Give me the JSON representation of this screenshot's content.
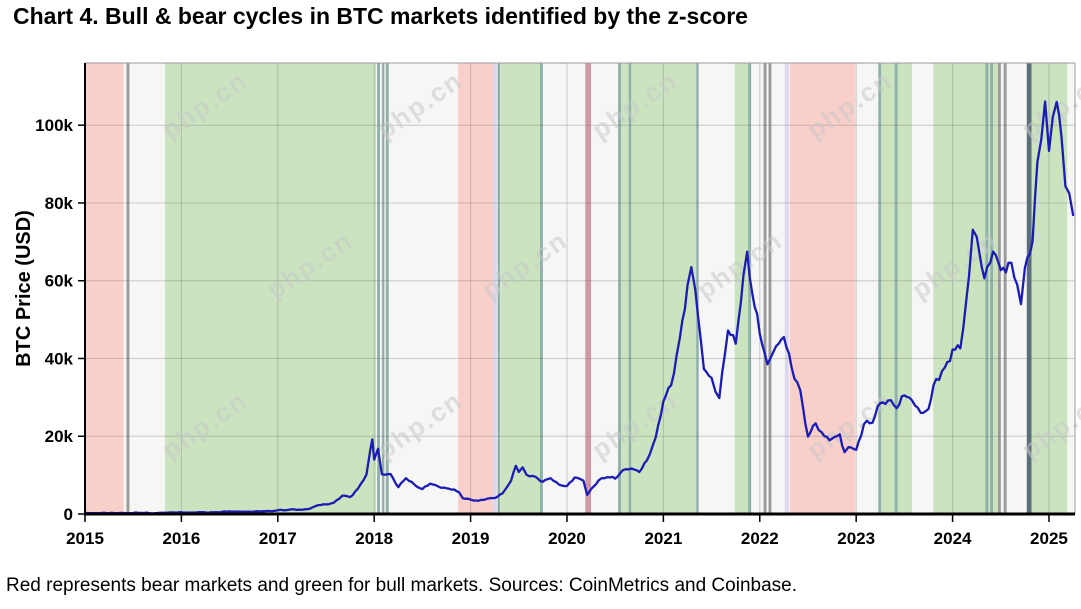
{
  "figure": {
    "title": "Chart 4. Bull & bear cycles in BTC markets identified by the z-score",
    "footnote": "Red represents bear markets and green for bull markets. Sources: CoinMetrics and Coinbase."
  },
  "watermark": {
    "text": "php.cn",
    "color": "#c9c9c9"
  },
  "chart_data": {
    "type": "line",
    "title": "Chart 4. Bull & bear cycles in BTC markets identified by the z-score",
    "xlabel": "",
    "ylabel": "BTC Price (USD)",
    "unit": "thousand USD",
    "grid": true,
    "legend_position": "none",
    "xlim": [
      2015,
      2025.27
    ],
    "ylim": [
      0,
      116
    ],
    "x_ticks": [
      2015,
      2016,
      2017,
      2018,
      2019,
      2020,
      2021,
      2022,
      2023,
      2024,
      2025
    ],
    "y_ticks": [
      {
        "value": 0,
        "label": "0"
      },
      {
        "value": 20,
        "label": "20k"
      },
      {
        "value": 40,
        "label": "40k"
      },
      {
        "value": 60,
        "label": "60k"
      },
      {
        "value": 80,
        "label": "80k"
      },
      {
        "value": 100,
        "label": "100k"
      }
    ],
    "line_color": "#1b1cb4",
    "plot_bg": "#f6f6f4",
    "regime_colors": {
      "bear": "#f8cfc9",
      "bull": "#cbe4bf",
      "teal_line": "#8fb0ab",
      "gray_line": "#9a9a9a",
      "lavender": "#ddd8f0",
      "crash": "#cf9aa6",
      "slate": "#5c6d7e"
    },
    "regimes": [
      {
        "kind": "bear",
        "start": 2015.01,
        "end": 2015.4
      },
      {
        "kind": "gray_line",
        "start": 2015.43,
        "end": 2015.46
      },
      {
        "kind": "bull",
        "start": 2015.83,
        "end": 2018.02
      },
      {
        "kind": "teal_line",
        "start": 2018.03,
        "end": 2018.06
      },
      {
        "kind": "teal_line",
        "start": 2018.08,
        "end": 2018.1
      },
      {
        "kind": "teal_line",
        "start": 2018.12,
        "end": 2018.15
      },
      {
        "kind": "bear",
        "start": 2018.87,
        "end": 2019.23
      },
      {
        "kind": "lavender",
        "start": 2019.23,
        "end": 2019.27
      },
      {
        "kind": "teal_line",
        "start": 2019.28,
        "end": 2019.3
      },
      {
        "kind": "bull",
        "start": 2019.31,
        "end": 2019.74
      },
      {
        "kind": "teal_line",
        "start": 2019.72,
        "end": 2019.75
      },
      {
        "kind": "crash",
        "start": 2020.19,
        "end": 2020.25
      },
      {
        "kind": "teal_line",
        "start": 2020.53,
        "end": 2020.56
      },
      {
        "kind": "bull",
        "start": 2020.56,
        "end": 2021.34
      },
      {
        "kind": "teal_line",
        "start": 2020.64,
        "end": 2020.66
      },
      {
        "kind": "teal_line",
        "start": 2021.34,
        "end": 2021.36
      },
      {
        "kind": "bull",
        "start": 2021.74,
        "end": 2021.89
      },
      {
        "kind": "teal_line",
        "start": 2021.88,
        "end": 2021.91
      },
      {
        "kind": "gray_line",
        "start": 2022.04,
        "end": 2022.07
      },
      {
        "kind": "gray_line",
        "start": 2022.09,
        "end": 2022.12
      },
      {
        "kind": "lavender",
        "start": 2022.26,
        "end": 2022.3
      },
      {
        "kind": "bear",
        "start": 2022.31,
        "end": 2022.99
      },
      {
        "kind": "teal_line",
        "start": 2023.23,
        "end": 2023.26
      },
      {
        "kind": "bull",
        "start": 2023.26,
        "end": 2023.58
      },
      {
        "kind": "teal_line",
        "start": 2023.4,
        "end": 2023.43
      },
      {
        "kind": "bull",
        "start": 2023.8,
        "end": 2024.47
      },
      {
        "kind": "teal_line",
        "start": 2024.34,
        "end": 2024.37
      },
      {
        "kind": "teal_line",
        "start": 2024.39,
        "end": 2024.42
      },
      {
        "kind": "gray_line",
        "start": 2024.47,
        "end": 2024.5
      },
      {
        "kind": "gray_line",
        "start": 2024.53,
        "end": 2024.56
      },
      {
        "kind": "slate",
        "start": 2024.77,
        "end": 2024.82
      },
      {
        "kind": "bull",
        "start": 2024.82,
        "end": 2025.19
      }
    ],
    "series": {
      "name": "BTC price (thousand USD)",
      "points": [
        [
          2015.0,
          0.31
        ],
        [
          2015.08,
          0.22
        ],
        [
          2015.17,
          0.25
        ],
        [
          2015.25,
          0.24
        ],
        [
          2015.33,
          0.24
        ],
        [
          2015.42,
          0.23
        ],
        [
          2015.5,
          0.26
        ],
        [
          2015.58,
          0.28
        ],
        [
          2015.67,
          0.23
        ],
        [
          2015.75,
          0.24
        ],
        [
          2015.83,
          0.31
        ],
        [
          2015.92,
          0.38
        ],
        [
          2016.0,
          0.43
        ],
        [
          2016.08,
          0.37
        ],
        [
          2016.17,
          0.44
        ],
        [
          2016.25,
          0.42
        ],
        [
          2016.33,
          0.45
        ],
        [
          2016.42,
          0.53
        ],
        [
          2016.5,
          0.67
        ],
        [
          2016.58,
          0.62
        ],
        [
          2016.67,
          0.58
        ],
        [
          2016.75,
          0.61
        ],
        [
          2016.83,
          0.7
        ],
        [
          2016.92,
          0.74
        ],
        [
          2017.0,
          0.96
        ],
        [
          2017.08,
          0.97
        ],
        [
          2017.17,
          1.18
        ],
        [
          2017.25,
          1.08
        ],
        [
          2017.33,
          1.35
        ],
        [
          2017.42,
          2.29
        ],
        [
          2017.5,
          2.48
        ],
        [
          2017.58,
          2.87
        ],
        [
          2017.67,
          4.73
        ],
        [
          2017.75,
          4.34
        ],
        [
          2017.83,
          6.47
        ],
        [
          2017.92,
          10.2
        ],
        [
          2017.96,
          16.5
        ],
        [
          2017.98,
          19.2
        ],
        [
          2018.0,
          14.0
        ],
        [
          2018.04,
          16.8
        ],
        [
          2018.08,
          10.2
        ],
        [
          2018.17,
          10.3
        ],
        [
          2018.25,
          6.9
        ],
        [
          2018.33,
          9.2
        ],
        [
          2018.42,
          7.5
        ],
        [
          2018.5,
          6.4
        ],
        [
          2018.58,
          7.8
        ],
        [
          2018.67,
          7.0
        ],
        [
          2018.75,
          6.6
        ],
        [
          2018.83,
          6.3
        ],
        [
          2018.88,
          5.6
        ],
        [
          2018.92,
          4.0
        ],
        [
          2019.0,
          3.7
        ],
        [
          2019.08,
          3.4
        ],
        [
          2019.17,
          3.9
        ],
        [
          2019.25,
          4.1
        ],
        [
          2019.33,
          5.3
        ],
        [
          2019.42,
          8.6
        ],
        [
          2019.47,
          12.4
        ],
        [
          2019.5,
          10.8
        ],
        [
          2019.54,
          12.0
        ],
        [
          2019.58,
          10.1
        ],
        [
          2019.67,
          9.6
        ],
        [
          2019.75,
          8.3
        ],
        [
          2019.83,
          9.2
        ],
        [
          2019.92,
          7.5
        ],
        [
          2020.0,
          7.2
        ],
        [
          2020.08,
          9.4
        ],
        [
          2020.17,
          8.6
        ],
        [
          2020.21,
          4.9
        ],
        [
          2020.25,
          6.4
        ],
        [
          2020.33,
          8.7
        ],
        [
          2020.42,
          9.5
        ],
        [
          2020.5,
          9.1
        ],
        [
          2020.58,
          11.3
        ],
        [
          2020.67,
          11.7
        ],
        [
          2020.75,
          10.8
        ],
        [
          2020.83,
          13.8
        ],
        [
          2020.92,
          19.7
        ],
        [
          2021.0,
          29.0
        ],
        [
          2021.08,
          33.1
        ],
        [
          2021.17,
          45.2
        ],
        [
          2021.25,
          58.8
        ],
        [
          2021.29,
          63.5
        ],
        [
          2021.33,
          57.8
        ],
        [
          2021.42,
          37.3
        ],
        [
          2021.5,
          35.0
        ],
        [
          2021.54,
          31.5
        ],
        [
          2021.58,
          29.8
        ],
        [
          2021.67,
          47.2
        ],
        [
          2021.75,
          43.8
        ],
        [
          2021.83,
          61.3
        ],
        [
          2021.87,
          67.5
        ],
        [
          2021.92,
          57.0
        ],
        [
          2022.0,
          46.3
        ],
        [
          2022.08,
          38.5
        ],
        [
          2022.17,
          43.2
        ],
        [
          2022.25,
          45.5
        ],
        [
          2022.33,
          37.7
        ],
        [
          2022.42,
          31.8
        ],
        [
          2022.5,
          19.9
        ],
        [
          2022.58,
          23.3
        ],
        [
          2022.67,
          20.0
        ],
        [
          2022.75,
          19.4
        ],
        [
          2022.83,
          20.5
        ],
        [
          2022.88,
          15.9
        ],
        [
          2022.92,
          17.2
        ],
        [
          2023.0,
          16.5
        ],
        [
          2023.08,
          23.1
        ],
        [
          2023.17,
          23.5
        ],
        [
          2023.25,
          28.5
        ],
        [
          2023.33,
          29.2
        ],
        [
          2023.42,
          27.2
        ],
        [
          2023.5,
          30.5
        ],
        [
          2023.58,
          29.2
        ],
        [
          2023.67,
          26.0
        ],
        [
          2023.75,
          27.0
        ],
        [
          2023.83,
          34.7
        ],
        [
          2023.92,
          37.7
        ],
        [
          2024.0,
          42.3
        ],
        [
          2024.08,
          42.6
        ],
        [
          2024.17,
          61.2
        ],
        [
          2024.21,
          73.1
        ],
        [
          2024.25,
          71.3
        ],
        [
          2024.33,
          60.6
        ],
        [
          2024.42,
          67.5
        ],
        [
          2024.5,
          62.7
        ],
        [
          2024.58,
          64.6
        ],
        [
          2024.67,
          59.0
        ],
        [
          2024.71,
          54.0
        ],
        [
          2024.75,
          63.3
        ],
        [
          2024.83,
          70.2
        ],
        [
          2024.88,
          90.5
        ],
        [
          2024.92,
          96.4
        ],
        [
          2024.96,
          106.1
        ],
        [
          2025.0,
          93.4
        ],
        [
          2025.04,
          102.1
        ],
        [
          2025.08,
          106.0
        ],
        [
          2025.13,
          97.0
        ],
        [
          2025.17,
          84.3
        ],
        [
          2025.21,
          82.5
        ],
        [
          2025.25,
          76.9
        ]
      ]
    }
  }
}
